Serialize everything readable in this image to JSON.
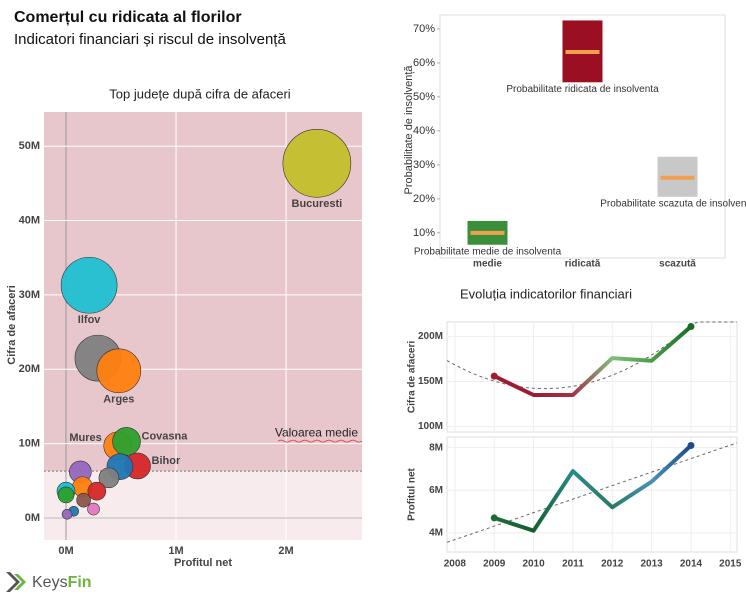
{
  "header": {
    "title": "Comerțul cu ridicata al florilor",
    "subtitle": "Indicatori financiari și riscul de insolvență"
  },
  "logo": {
    "text_1": "Keys",
    "text_2": "Fin"
  },
  "chart_data": [
    {
      "type": "bubble",
      "title": "Top județe după cifra de afaceri",
      "x_label": "Profitul net",
      "y_label": "Cifra de afaceri",
      "xlim": [
        -0.2,
        2.69
      ],
      "ylim": [
        -2.96,
        54.6
      ],
      "xticks": [
        {
          "value": 0,
          "label": "0M"
        },
        {
          "value": 1,
          "label": "1M"
        },
        {
          "value": 2,
          "label": "2M"
        }
      ],
      "yticks": [
        {
          "value": 0,
          "label": "0M"
        },
        {
          "value": 10,
          "label": "10M"
        },
        {
          "value": 20,
          "label": "20M"
        },
        {
          "value": 30,
          "label": "30M"
        },
        {
          "value": 40,
          "label": "40M"
        },
        {
          "value": 50,
          "label": "50M"
        }
      ],
      "mean": 6.3,
      "mean_label": "Valoarea medie",
      "points": {
        "labels": [
          "Bucuresti",
          "Ilfov",
          null,
          "Arges",
          "Mures",
          "Covasna",
          "Bihor",
          null,
          null,
          null,
          null,
          null,
          null,
          null,
          null,
          null,
          null,
          null
        ],
        "label_side": [
          "below",
          "below",
          null,
          "below",
          "left",
          "right",
          "right",
          null,
          null,
          null,
          null,
          null,
          null,
          null,
          null,
          null,
          null,
          null
        ],
        "x": [
          2.28,
          0.21,
          0.29,
          0.48,
          0.47,
          0.55,
          0.65,
          0.49,
          0.39,
          0.13,
          0.15,
          0.28,
          0.0,
          0.0,
          0.16,
          0.25,
          0.07,
          0.01
        ],
        "y": [
          47.7,
          31.3,
          21.5,
          19.8,
          9.7,
          10.3,
          7.0,
          6.9,
          5.4,
          6.2,
          4.2,
          3.6,
          3.6,
          3.1,
          2.4,
          1.2,
          0.9,
          0.5
        ],
        "sizes": [
          34,
          28,
          23,
          22,
          14,
          14,
          13,
          13,
          10,
          11,
          10,
          9,
          9,
          8,
          7,
          6,
          5,
          5
        ],
        "colors": [
          "#c2bf2a",
          "#1fc0d2",
          "#7f7f7f",
          "#ff7f0e",
          "#ff7f0e",
          "#2ca02c",
          "#d62728",
          "#1f77b4",
          "#7f7f7f",
          "#9467bd",
          "#ff7f0e",
          "#d62728",
          "#17becf",
          "#2ca02c",
          "#8c564b",
          "#e377c2",
          "#1f77b4",
          "#9467bd"
        ]
      }
    },
    {
      "type": "box",
      "y_label": "Probabilitate de insolvență",
      "ylim": [
        2.6,
        74.1
      ],
      "yticks": [
        {
          "value": 10,
          "label": "10%"
        },
        {
          "value": 20,
          "label": "20%"
        },
        {
          "value": 30,
          "label": "30%"
        },
        {
          "value": 40,
          "label": "40%"
        },
        {
          "value": 50,
          "label": "50%"
        },
        {
          "value": 60,
          "label": "60%"
        },
        {
          "value": 70,
          "label": "70%"
        }
      ],
      "categories": [
        "medie",
        "ridicată",
        "scazută"
      ],
      "low": [
        6.5,
        54.3,
        20.6
      ],
      "high": [
        13.5,
        72.5,
        32.4
      ],
      "median": [
        10,
        63.2,
        26.2
      ],
      "colors": [
        "#3a8f3a",
        "#9b0f23",
        "#c8c8c8"
      ],
      "median_color": "#f0a050",
      "annotations": [
        "Probabilitate medie de insolventa",
        "Probabilitate ridicata de insolventa",
        "Probabilitate scazuta de insolventa"
      ]
    },
    {
      "type": "line",
      "title": "Evoluția indicatorilor financiari",
      "y_label": "Cifra de afaceri",
      "x": [
        2009,
        2010,
        2011,
        2012,
        2013,
        2014
      ],
      "values": [
        156,
        135,
        135,
        176,
        173,
        211
      ],
      "point_colors": [
        "#a01c30",
        "#9b1b30",
        "#a3324a",
        "#7fbf7b",
        "#4a9e4a",
        "#1a6b2a"
      ],
      "xlim": [
        2007.8,
        2015.17
      ],
      "ylim": [
        94,
        216
      ],
      "xticks": [
        2008,
        2009,
        2010,
        2011,
        2012,
        2013,
        2014,
        2015
      ],
      "yticks": [
        {
          "value": 100,
          "label": "100M"
        },
        {
          "value": 150,
          "label": "150M"
        },
        {
          "value": 200,
          "label": "200M"
        }
      ],
      "trend": "quadratic"
    },
    {
      "type": "line",
      "y_label": "Profitul net",
      "x": [
        2009,
        2010,
        2011,
        2012,
        2013,
        2014
      ],
      "values": [
        4.7,
        4.1,
        6.9,
        5.2,
        6.4,
        8.1
      ],
      "point_colors": [
        "#1e6b3a",
        "#155e30",
        "#2a8a8a",
        "#2a7a6a",
        "#4a90b8",
        "#1e4b8a"
      ],
      "xlim": [
        2007.8,
        2015.17
      ],
      "ylim": [
        3.1,
        8.5
      ],
      "xticks": [
        2008,
        2009,
        2010,
        2011,
        2012,
        2013,
        2014,
        2015
      ],
      "yticks": [
        {
          "value": 4,
          "label": "4M"
        },
        {
          "value": 6,
          "label": "6M"
        },
        {
          "value": 8,
          "label": "8M"
        }
      ],
      "trend": "linear",
      "show_xtick_labels": true
    }
  ]
}
